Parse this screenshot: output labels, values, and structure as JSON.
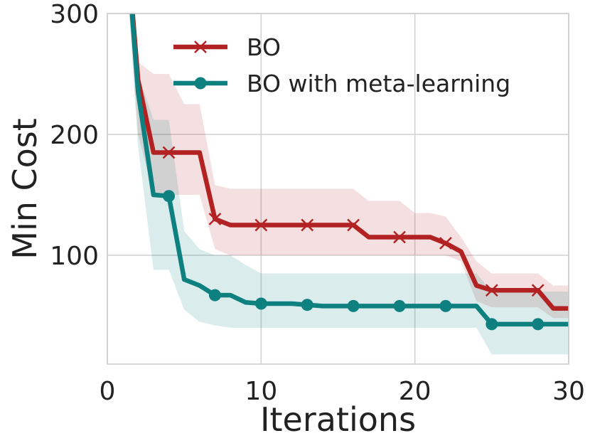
{
  "chart_data": {
    "type": "line",
    "title": "",
    "xlabel": "Iterations",
    "ylabel": "Min Cost",
    "xlim": [
      0,
      30
    ],
    "ylim": [
      10,
      300
    ],
    "xticks": [
      0,
      10,
      20,
      30
    ],
    "yticks": [
      100,
      200,
      300
    ],
    "x_tick_labels": [
      "0",
      "10",
      "20",
      "30"
    ],
    "y_tick_labels": [
      "100",
      "200",
      "300"
    ],
    "grid": true,
    "legend_position": "top-center",
    "x": [
      1,
      2,
      3,
      4,
      5,
      6,
      7,
      8,
      9,
      10,
      11,
      12,
      13,
      14,
      15,
      16,
      17,
      18,
      19,
      20,
      21,
      22,
      23,
      24,
      25,
      26,
      27,
      28,
      29,
      30
    ],
    "series": [
      {
        "name": "BO",
        "color": "#b22222",
        "marker": "x",
        "marker_at": [
          4,
          7,
          10,
          13,
          16,
          19,
          22,
          25,
          28
        ],
        "values": [
          400,
          245,
          185,
          185,
          185,
          185,
          130,
          125,
          125,
          125,
          125,
          125,
          125,
          125,
          125,
          125,
          115,
          115,
          115,
          115,
          115,
          110,
          103,
          75,
          71,
          71,
          71,
          71,
          56,
          56
        ],
        "band_lower": [
          380,
          200,
          150,
          150,
          150,
          150,
          105,
          100,
          100,
          100,
          100,
          100,
          100,
          100,
          100,
          100,
          100,
          100,
          100,
          100,
          100,
          100,
          95,
          62,
          57,
          57,
          57,
          57,
          48,
          48
        ],
        "band_upper": [
          400,
          260,
          250,
          250,
          225,
          225,
          158,
          155,
          155,
          155,
          155,
          155,
          155,
          155,
          155,
          155,
          145,
          145,
          145,
          135,
          135,
          132,
          115,
          95,
          85,
          85,
          85,
          85,
          75,
          75
        ]
      },
      {
        "name": "BO with meta-learning",
        "color": "#0f8080",
        "marker": "o",
        "marker_at": [
          4,
          7,
          10,
          13,
          16,
          19,
          22,
          25,
          28
        ],
        "values": [
          400,
          235,
          150,
          149,
          80,
          75,
          67,
          67,
          61,
          60,
          60,
          60,
          59,
          58,
          58,
          58,
          58,
          58,
          58,
          58,
          58,
          58,
          58,
          58,
          43,
          43,
          43,
          43,
          43,
          43
        ],
        "band_lower": [
          380,
          190,
          88,
          88,
          55,
          45,
          42,
          40,
          40,
          40,
          40,
          40,
          40,
          40,
          40,
          40,
          40,
          40,
          40,
          40,
          40,
          40,
          40,
          40,
          18,
          18,
          18,
          18,
          18,
          18
        ],
        "band_upper": [
          400,
          250,
          212,
          212,
          120,
          105,
          100,
          100,
          92,
          85,
          85,
          85,
          85,
          85,
          85,
          85,
          85,
          85,
          85,
          85,
          85,
          85,
          85,
          85,
          70,
          70,
          70,
          70,
          70,
          70
        ]
      }
    ]
  }
}
